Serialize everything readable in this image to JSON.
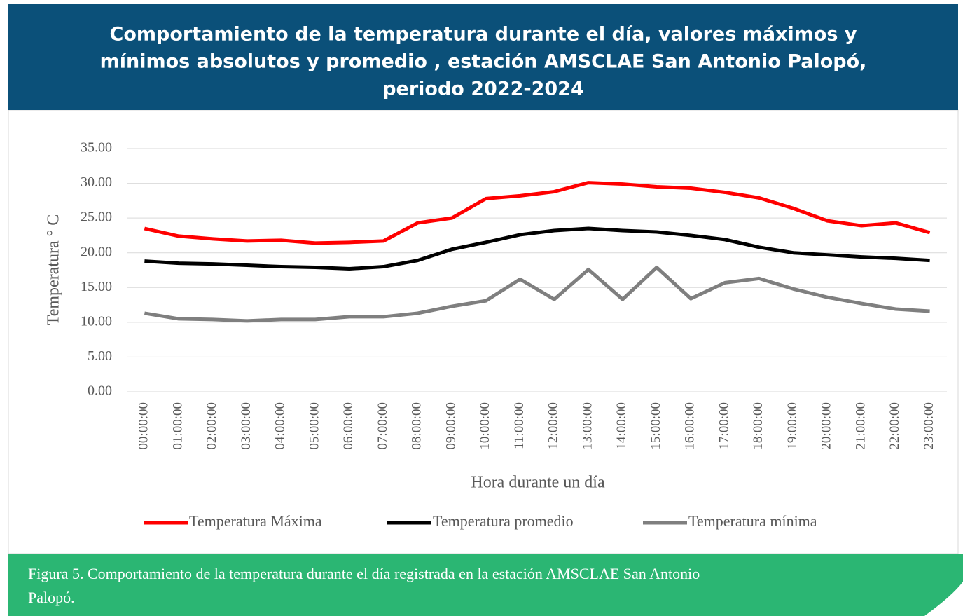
{
  "chart_data": {
    "type": "line",
    "title": [
      "Comportamiento de la temperatura durante el día, valores máximos y",
      "mínimos absolutos y promedio , estación AMSCLAE San Antonio Palopó,",
      "periodo 2022-2024"
    ],
    "categories": [
      "00:00:00",
      "01:00:00",
      "02:00:00",
      "03:00:00",
      "04:00:00",
      "05:00:00",
      "06:00:00",
      "07:00:00",
      "08:00:00",
      "09:00:00",
      "10:00:00",
      "11:00:00",
      "12:00:00",
      "13:00:00",
      "14:00:00",
      "15:00:00",
      "16:00:00",
      "17:00:00",
      "18:00:00",
      "19:00:00",
      "20:00:00",
      "21:00:00",
      "22:00:00",
      "23:00:00"
    ],
    "series": [
      {
        "name": "Temperatura Máxima",
        "color": "#ff0000",
        "values": [
          23.5,
          22.4,
          22.0,
          21.7,
          21.8,
          21.4,
          21.5,
          21.7,
          24.3,
          25.0,
          27.8,
          28.2,
          28.8,
          30.1,
          29.9,
          29.5,
          29.3,
          28.7,
          27.9,
          26.4,
          24.6,
          23.9,
          24.3,
          22.9
        ]
      },
      {
        "name": "Temperatura promedio",
        "color": "#000000",
        "values": [
          18.8,
          18.5,
          18.4,
          18.2,
          18.0,
          17.9,
          17.7,
          18.0,
          18.9,
          20.5,
          21.5,
          22.6,
          23.2,
          23.5,
          23.2,
          23.0,
          22.5,
          21.9,
          20.8,
          20.0,
          19.7,
          19.4,
          19.2,
          18.9
        ]
      },
      {
        "name": "Temperatura mínima",
        "color": "#7f7f7f",
        "values": [
          11.3,
          10.5,
          10.4,
          10.2,
          10.4,
          10.4,
          10.8,
          10.8,
          11.3,
          12.3,
          13.1,
          16.2,
          13.3,
          17.6,
          13.3,
          17.9,
          13.4,
          15.7,
          16.3,
          14.8,
          13.6,
          12.7,
          11.9,
          11.6
        ]
      }
    ],
    "ylim": [
      0,
      35
    ],
    "yticks": [
      {
        "value": 0,
        "label": "0.00"
      },
      {
        "value": 5,
        "label": "5.00"
      },
      {
        "value": 10,
        "label": "10.00"
      },
      {
        "value": 15,
        "label": "15.00"
      },
      {
        "value": 20,
        "label": "20.00"
      },
      {
        "value": 25,
        "label": "25.00"
      },
      {
        "value": 30,
        "label": "30.00"
      },
      {
        "value": 35,
        "label": "35.00"
      }
    ],
    "y_label": "Temperatura ° C",
    "x_label": "Hora durante un día",
    "grid": true,
    "legend": "bottom"
  },
  "caption": [
    "Figura 5. Comportamiento de la temperatura durante el día registrada en la estación AMSCLAE San Antonio",
    "Palopó."
  ]
}
